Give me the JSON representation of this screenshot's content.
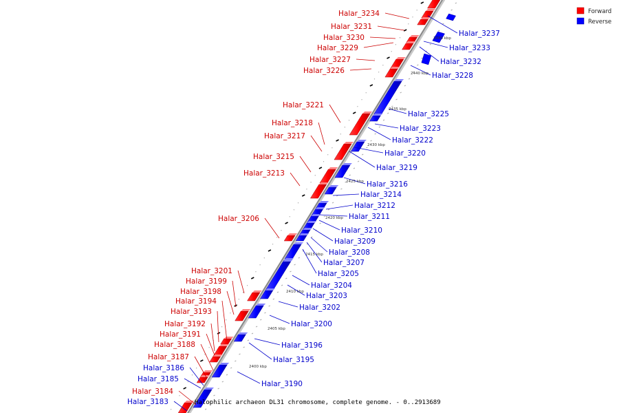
{
  "legend": {
    "forward_label": "Forward",
    "reverse_label": "Reverse",
    "forward_color": "#ff0000",
    "reverse_color": "#0000ff"
  },
  "caption": "Halophilic archaeon DL31 chromosome, complete genome. - 0..2913689",
  "kbp_labels": [
    "2445 kbp",
    "2440 kbp",
    "2435 kbp",
    "2430 kbp",
    "2425 kbp",
    "2420 kbp",
    "2415 kbp",
    "2410 kbp",
    "2405 kbp",
    "2400 kbp"
  ],
  "forward_genes": [
    "Halar_3234",
    "Halar_3231",
    "Halar_3230",
    "Halar_3229",
    "Halar_3227",
    "Halar_3226",
    "Halar_3221",
    "Halar_3218",
    "Halar_3217",
    "Halar_3215",
    "Halar_3213",
    "Halar_3206",
    "Halar_3201",
    "Halar_3199",
    "Halar_3198",
    "Halar_3194",
    "Halar_3193",
    "Halar_3192",
    "Halar_3191",
    "Halar_3188",
    "Halar_3187",
    "Halar_3184"
  ],
  "reverse_genes_right": [
    "Halar_3237",
    "Halar_3233",
    "Halar_3232",
    "Halar_3228",
    "Halar_3225",
    "Halar_3223",
    "Halar_3222",
    "Halar_3220",
    "Halar_3219",
    "Halar_3216",
    "Halar_3214",
    "Halar_3212",
    "Halar_3211",
    "Halar_3210",
    "Halar_3209",
    "Halar_3208",
    "Halar_3207",
    "Halar_3205",
    "Halar_3204",
    "Halar_3203",
    "Halar_3202",
    "Halar_3200",
    "Halar_3196",
    "Halar_3195",
    "Halar_3190"
  ],
  "reverse_genes_left": [
    "Halar_3186",
    "Halar_3185",
    "Halar_3183"
  ]
}
